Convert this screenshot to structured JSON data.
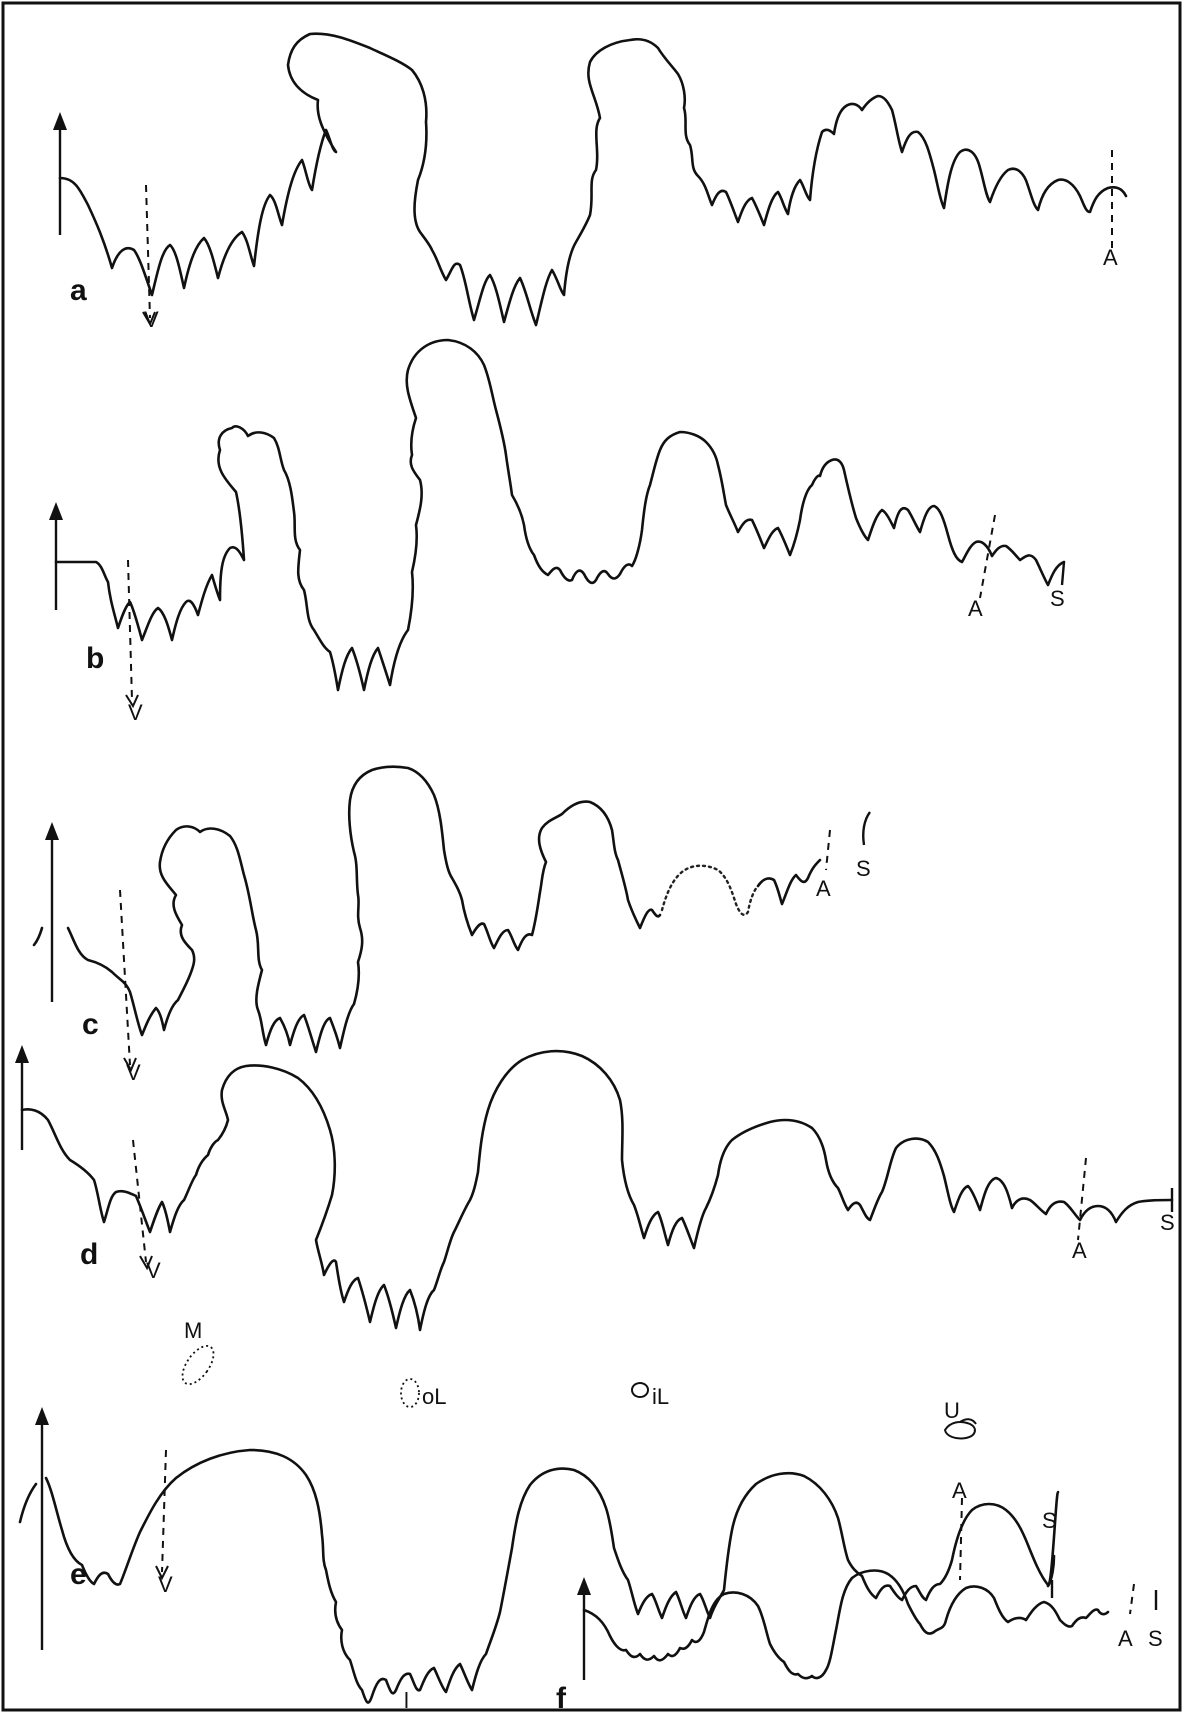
{
  "panels": [
    {
      "letter": "a",
      "markers": [
        "V",
        "A"
      ]
    },
    {
      "letter": "b",
      "markers": [
        "V",
        "A",
        "S"
      ]
    },
    {
      "letter": "c",
      "markers": [
        "V",
        "A",
        "S"
      ]
    },
    {
      "letter": "d",
      "markers": [
        "V",
        "A",
        "S"
      ]
    },
    {
      "letter": "e",
      "markers": [
        "M",
        "V",
        "oL",
        "iL",
        "U",
        "A",
        "S",
        "l"
      ]
    },
    {
      "letter": "f",
      "markers": [
        "A",
        "S"
      ]
    }
  ],
  "colors": {
    "ink": "#111111",
    "paper": "#ffffff"
  }
}
